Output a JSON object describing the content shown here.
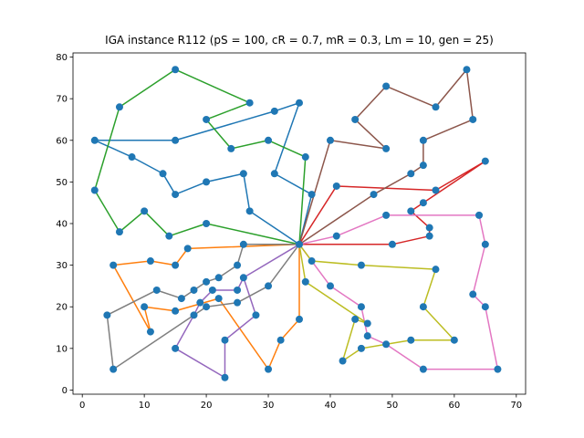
{
  "chart_data": {
    "type": "line",
    "title": "IGA instance R112 ($pS=100, cR=0.7, mR=0.3, Lm=10, gen=25$)",
    "title_display": "IGA instance R112 (pS = 100, cR = 0.7, mR = 0.3, Lm = 10, gen = 25)",
    "xlabel": "",
    "ylabel": "",
    "xlim": [
      -1.5,
      71.5
    ],
    "ylim": [
      -1,
      81
    ],
    "xticks": [
      0,
      10,
      20,
      30,
      40,
      50,
      60,
      70
    ],
    "yticks": [
      0,
      10,
      20,
      30,
      40,
      50,
      60,
      70,
      80
    ],
    "grid": false,
    "depot": [
      35,
      35
    ],
    "point_color": "#1f77b4",
    "series": [
      {
        "color": "#1f77b4",
        "points": [
          [
            35,
            35
          ],
          [
            37,
            47
          ],
          [
            31,
            52
          ],
          [
            35,
            69
          ],
          [
            31,
            67
          ],
          [
            15,
            60
          ],
          [
            2,
            60
          ],
          [
            8,
            56
          ],
          [
            13,
            52
          ],
          [
            15,
            47
          ],
          [
            20,
            50
          ],
          [
            26,
            52
          ],
          [
            27,
            43
          ],
          [
            35,
            35
          ]
        ]
      },
      {
        "color": "#ff7f0e",
        "points": [
          [
            35,
            35
          ],
          [
            17,
            34
          ],
          [
            15,
            30
          ],
          [
            11,
            31
          ],
          [
            5,
            30
          ],
          [
            11,
            14
          ],
          [
            10,
            20
          ],
          [
            15,
            19
          ],
          [
            22,
            22
          ],
          [
            30,
            5
          ],
          [
            32,
            12
          ],
          [
            35,
            17
          ],
          [
            35,
            35
          ]
        ]
      },
      {
        "color": "#2ca02c",
        "points": [
          [
            35,
            35
          ],
          [
            36,
            56
          ],
          [
            30,
            60
          ],
          [
            24,
            58
          ],
          [
            20,
            65
          ],
          [
            27,
            69
          ],
          [
            15,
            77
          ],
          [
            6,
            68
          ],
          [
            2,
            48
          ],
          [
            6,
            38
          ],
          [
            10,
            43
          ],
          [
            14,
            37
          ],
          [
            20,
            40
          ],
          [
            35,
            35
          ]
        ]
      },
      {
        "color": "#d62728",
        "points": [
          [
            35,
            35
          ],
          [
            41,
            49
          ],
          [
            57,
            48
          ],
          [
            65,
            55
          ],
          [
            55,
            45
          ],
          [
            53,
            43
          ],
          [
            56,
            39
          ],
          [
            56,
            37
          ],
          [
            50,
            35
          ],
          [
            35,
            35
          ]
        ]
      },
      {
        "color": "#9467bd",
        "points": [
          [
            35,
            35
          ],
          [
            26,
            27
          ],
          [
            28,
            18
          ],
          [
            23,
            12
          ],
          [
            23,
            3
          ],
          [
            15,
            10
          ],
          [
            18,
            18
          ],
          [
            19,
            21
          ],
          [
            21,
            24
          ],
          [
            25,
            24
          ],
          [
            26,
            27
          ],
          [
            35,
            35
          ]
        ]
      },
      {
        "color": "#8c564b",
        "points": [
          [
            35,
            35
          ],
          [
            40,
            60
          ],
          [
            49,
            58
          ],
          [
            44,
            65
          ],
          [
            49,
            73
          ],
          [
            57,
            68
          ],
          [
            62,
            77
          ],
          [
            63,
            65
          ],
          [
            55,
            60
          ],
          [
            55,
            54
          ],
          [
            53,
            52
          ],
          [
            47,
            47
          ],
          [
            35,
            35
          ]
        ]
      },
      {
        "color": "#e377c2",
        "points": [
          [
            35,
            35
          ],
          [
            41,
            37
          ],
          [
            49,
            42
          ],
          [
            64,
            42
          ],
          [
            65,
            35
          ],
          [
            63,
            23
          ],
          [
            65,
            20
          ],
          [
            67,
            5
          ],
          [
            55,
            5
          ],
          [
            49,
            11
          ],
          [
            46,
            13
          ],
          [
            45,
            20
          ],
          [
            40,
            25
          ],
          [
            37,
            31
          ],
          [
            35,
            35
          ]
        ]
      },
      {
        "color": "#7f7f7f",
        "points": [
          [
            35,
            35
          ],
          [
            26,
            35
          ],
          [
            25,
            30
          ],
          [
            22,
            27
          ],
          [
            20,
            26
          ],
          [
            18,
            24
          ],
          [
            16,
            22
          ],
          [
            12,
            24
          ],
          [
            4,
            18
          ],
          [
            5,
            5
          ],
          [
            20,
            20
          ],
          [
            25,
            21
          ],
          [
            30,
            25
          ],
          [
            35,
            35
          ]
        ]
      },
      {
        "color": "#bcbd22",
        "points": [
          [
            35,
            35
          ],
          [
            37,
            31
          ],
          [
            45,
            30
          ],
          [
            57,
            29
          ],
          [
            55,
            20
          ],
          [
            60,
            12
          ],
          [
            53,
            12
          ],
          [
            45,
            10
          ],
          [
            42,
            7
          ],
          [
            44,
            17
          ],
          [
            46,
            16
          ],
          [
            36,
            26
          ],
          [
            35,
            35
          ]
        ]
      }
    ]
  }
}
